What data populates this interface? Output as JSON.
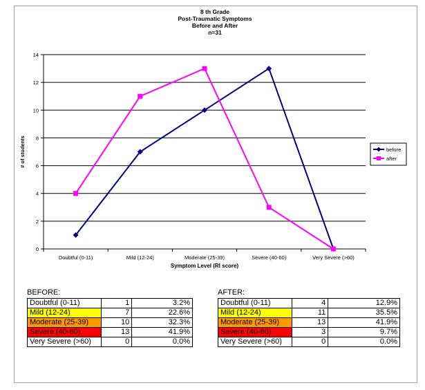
{
  "chart_data": {
    "type": "line",
    "title": [
      "8 th Grade",
      "Post-Traumatic Symptoms",
      "Before and After",
      "n=31"
    ],
    "xlabel": "Symptom Level (RI score)",
    "ylabel": "# of students",
    "categories": [
      "Doubtful (0-11)",
      "Mild (12-24)",
      "Moderate (25-39)",
      "Severe (40-60)",
      "Very Severe (>60)"
    ],
    "ylim": [
      0,
      14
    ],
    "yticks": [
      0,
      2,
      4,
      6,
      8,
      10,
      12,
      14
    ],
    "grid": true,
    "legend_position": "right",
    "series": [
      {
        "name": "before",
        "values": [
          1,
          7,
          10,
          13,
          0
        ],
        "color": "#000080",
        "marker": "diamond"
      },
      {
        "name": "after",
        "values": [
          4,
          11,
          13,
          3,
          0
        ],
        "color": "#ff00ff",
        "marker": "square"
      }
    ]
  },
  "tables": {
    "before": {
      "title": "BEFORE:",
      "rows": [
        {
          "label": "Doubtful (0-11)",
          "count": "1",
          "pct": "3.2%",
          "color": "#ffffff"
        },
        {
          "label": "Mild (12-24)",
          "count": "7",
          "pct": "22.6%",
          "color": "#ffff00"
        },
        {
          "label": "Moderate (25-39)",
          "count": "10",
          "pct": "32.3%",
          "color": "#ff9900"
        },
        {
          "label": "Severe (40-60)",
          "count": "13",
          "pct": "41.9%",
          "color": "#ff0000"
        },
        {
          "label": "Very Severe (>60)",
          "count": "0",
          "pct": "0.0%",
          "color": "#ffffff"
        }
      ]
    },
    "after": {
      "title": "AFTER:",
      "rows": [
        {
          "label": "Doubtful (0-11)",
          "count": "4",
          "pct": "12.9%",
          "color": "#ffffff"
        },
        {
          "label": "Mild (12-24)",
          "count": "11",
          "pct": "35.5%",
          "color": "#ffff00"
        },
        {
          "label": "Moderate (25-39)",
          "count": "13",
          "pct": "41.9%",
          "color": "#ff9900"
        },
        {
          "label": "Severe (40-60)",
          "count": "3",
          "pct": "9.7%",
          "color": "#ff0000"
        },
        {
          "label": "Very Severe (>60)",
          "count": "0",
          "pct": "0.0%",
          "color": "#ffffff"
        }
      ]
    }
  }
}
